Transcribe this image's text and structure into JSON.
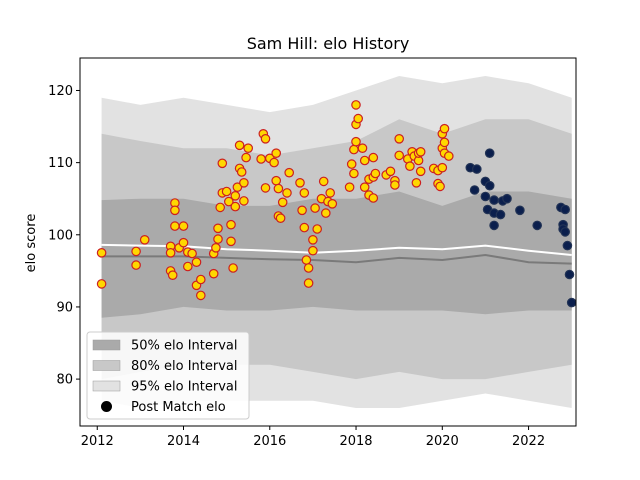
{
  "chart_data": {
    "type": "scatter",
    "title": "Sam Hill: elo History",
    "xlabel": "",
    "ylabel": "elo score",
    "xlim": [
      2011.6,
      2023.1
    ],
    "ylim": [
      73.5,
      124.5
    ],
    "x_ticks": [
      2012,
      2014,
      2016,
      2018,
      2020,
      2022
    ],
    "y_ticks": [
      80,
      90,
      100,
      110,
      120
    ],
    "grid": false,
    "legend": {
      "placement": "lower-left",
      "entries": [
        "50% elo Interval",
        "80% elo Interval",
        "95% elo Interval",
        "Post Match elo"
      ]
    },
    "colors": {
      "band95": "#e2e2e2",
      "band80": "#c8c8c8",
      "band50": "#aaaaaa",
      "median_line": "#ffffff",
      "mean_line": "#7a7a7a",
      "past_fill": "#ffd700",
      "past_edge": "#cc2020",
      "recent_fill": "#0b1f4d",
      "recent_edge": "#223355"
    },
    "bands": {
      "x": [
        2012.1,
        2013.0,
        2014.0,
        2015.0,
        2016.0,
        2017.0,
        2018.0,
        2019.0,
        2020.0,
        2021.0,
        2022.0,
        2023.0
      ],
      "p95_upper": [
        119,
        118,
        119,
        118,
        117,
        118,
        120,
        122,
        121,
        122,
        121,
        119
      ],
      "p95_lower": [
        77,
        76,
        77,
        77,
        77,
        77,
        76,
        76,
        77,
        78,
        77,
        76
      ],
      "p80_upper": [
        114,
        113,
        112,
        112,
        111,
        112,
        113,
        116,
        114,
        116,
        116,
        114
      ],
      "p80_lower": [
        80,
        81,
        82,
        82,
        82,
        81,
        80,
        81,
        80,
        80,
        81,
        82
      ],
      "p50_upper": [
        104.8,
        105,
        105,
        104,
        104,
        105,
        105,
        106,
        104,
        106,
        106,
        105
      ],
      "p50_lower": [
        88.5,
        89,
        90,
        89.5,
        89.5,
        90,
        89.5,
        89.5,
        89.5,
        89,
        89.5,
        89.5
      ],
      "median": [
        98.6,
        98.5,
        98.4,
        98,
        97.8,
        97.5,
        97.8,
        98.2,
        98,
        98.5,
        97.8,
        97.2
      ],
      "mean": [
        97,
        97,
        97,
        96.8,
        96.6,
        96.5,
        96.2,
        96.8,
        96.5,
        97.2,
        96.2,
        96
      ]
    },
    "series": [
      {
        "points": [
          [
            2012.1,
            97.5
          ],
          [
            2012.1,
            93.2
          ],
          [
            2012.9,
            97.7
          ],
          [
            2012.9,
            95.8
          ],
          [
            2013.1,
            99.3
          ],
          [
            2013.7,
            98.4
          ],
          [
            2013.7,
            97.5
          ],
          [
            2013.7,
            95.0
          ],
          [
            2013.75,
            94.4
          ],
          [
            2013.8,
            104.4
          ],
          [
            2013.8,
            103.4
          ],
          [
            2013.8,
            101.2
          ],
          [
            2013.9,
            98.2
          ],
          [
            2014.0,
            101.2
          ],
          [
            2014.0,
            98.9
          ],
          [
            2014.1,
            97.6
          ],
          [
            2014.1,
            95.6
          ],
          [
            2014.2,
            97.4
          ],
          [
            2014.3,
            96.2
          ],
          [
            2014.3,
            93.0
          ],
          [
            2014.4,
            93.8
          ],
          [
            2014.4,
            91.6
          ],
          [
            2014.7,
            97.4
          ],
          [
            2014.7,
            94.6
          ],
          [
            2014.75,
            98.2
          ],
          [
            2014.8,
            99.4
          ],
          [
            2014.8,
            100.9
          ],
          [
            2014.85,
            103.8
          ],
          [
            2014.9,
            105.8
          ],
          [
            2014.9,
            109.9
          ],
          [
            2015.0,
            106.0
          ],
          [
            2015.05,
            104.6
          ],
          [
            2015.1,
            101.4
          ],
          [
            2015.1,
            99.1
          ],
          [
            2015.15,
            95.4
          ],
          [
            2015.2,
            103.9
          ],
          [
            2015.2,
            105.4
          ],
          [
            2015.25,
            106.6
          ],
          [
            2015.3,
            109.2
          ],
          [
            2015.3,
            112.4
          ],
          [
            2015.35,
            108.7
          ],
          [
            2015.4,
            107.2
          ],
          [
            2015.4,
            104.7
          ],
          [
            2015.45,
            110.7
          ],
          [
            2015.5,
            112.0
          ],
          [
            2015.8,
            110.5
          ],
          [
            2015.85,
            114.0
          ],
          [
            2015.9,
            113.3
          ],
          [
            2015.9,
            106.5
          ],
          [
            2016.0,
            110.6
          ],
          [
            2016.1,
            110.0
          ],
          [
            2016.15,
            111.3
          ],
          [
            2016.15,
            107.5
          ],
          [
            2016.2,
            106.4
          ],
          [
            2016.2,
            102.6
          ],
          [
            2016.25,
            102.3
          ],
          [
            2016.3,
            104.5
          ],
          [
            2016.4,
            105.8
          ],
          [
            2016.45,
            108.6
          ],
          [
            2016.7,
            107.2
          ],
          [
            2016.75,
            103.4
          ],
          [
            2016.8,
            105.8
          ],
          [
            2016.8,
            101.0
          ],
          [
            2016.85,
            96.5
          ],
          [
            2016.9,
            95.4
          ],
          [
            2016.9,
            93.3
          ],
          [
            2017.0,
            99.3
          ],
          [
            2017.0,
            97.8
          ],
          [
            2017.05,
            103.7
          ],
          [
            2017.1,
            100.8
          ],
          [
            2017.2,
            105.0
          ],
          [
            2017.25,
            107.4
          ],
          [
            2017.3,
            103.0
          ],
          [
            2017.35,
            104.6
          ],
          [
            2017.4,
            105.8
          ],
          [
            2017.45,
            104.3
          ],
          [
            2017.85,
            106.6
          ],
          [
            2017.9,
            109.8
          ],
          [
            2017.95,
            108.5
          ],
          [
            2017.95,
            111.8
          ],
          [
            2018.0,
            112.9
          ],
          [
            2018.0,
            115.3
          ],
          [
            2018.05,
            116.1
          ],
          [
            2018.0,
            118.0
          ],
          [
            2018.15,
            112.0
          ],
          [
            2018.2,
            110.3
          ],
          [
            2018.2,
            106.6
          ],
          [
            2018.3,
            105.5
          ],
          [
            2018.3,
            107.7
          ],
          [
            2018.4,
            105.1
          ],
          [
            2018.4,
            108.0
          ],
          [
            2018.4,
            110.7
          ],
          [
            2018.45,
            108.5
          ],
          [
            2018.7,
            108.3
          ],
          [
            2018.8,
            108.8
          ],
          [
            2018.9,
            107.5
          ],
          [
            2018.9,
            106.9
          ],
          [
            2019.0,
            111.0
          ],
          [
            2019.0,
            113.3
          ],
          [
            2019.2,
            110.5
          ],
          [
            2019.25,
            109.5
          ],
          [
            2019.3,
            111.5
          ],
          [
            2019.35,
            110.9
          ],
          [
            2019.4,
            107.2
          ],
          [
            2019.45,
            110.3
          ],
          [
            2019.45,
            111.3
          ],
          [
            2019.5,
            108.8
          ],
          [
            2019.5,
            111.5
          ],
          [
            2019.8,
            109.2
          ],
          [
            2019.9,
            108.9
          ],
          [
            2019.9,
            107.1
          ],
          [
            2019.95,
            106.7
          ],
          [
            2020.0,
            109.3
          ],
          [
            2020.0,
            112.0
          ],
          [
            2020.05,
            111.3
          ],
          [
            2020.05,
            112.8
          ],
          [
            2020.0,
            114.0
          ],
          [
            2020.05,
            114.7
          ],
          [
            2020.15,
            110.9
          ]
        ]
      },
      {
        "points": [
          [
            2020.65,
            109.3
          ],
          [
            2020.8,
            109.1
          ],
          [
            2020.75,
            106.2
          ],
          [
            2021.0,
            107.4
          ],
          [
            2021.1,
            106.8
          ],
          [
            2021.05,
            103.5
          ],
          [
            2021.0,
            105.3
          ],
          [
            2021.1,
            111.3
          ],
          [
            2021.2,
            104.8
          ],
          [
            2021.2,
            103.0
          ],
          [
            2021.2,
            101.3
          ],
          [
            2021.35,
            102.8
          ],
          [
            2021.4,
            104.7
          ],
          [
            2021.5,
            105.0
          ],
          [
            2021.8,
            103.4
          ],
          [
            2022.2,
            101.3
          ],
          [
            2022.75,
            103.8
          ],
          [
            2022.8,
            101.4
          ],
          [
            2022.8,
            100.8
          ],
          [
            2022.85,
            103.5
          ],
          [
            2022.85,
            100.4
          ],
          [
            2022.9,
            98.5
          ],
          [
            2022.95,
            94.5
          ],
          [
            2023.0,
            90.6
          ]
        ]
      }
    ]
  }
}
